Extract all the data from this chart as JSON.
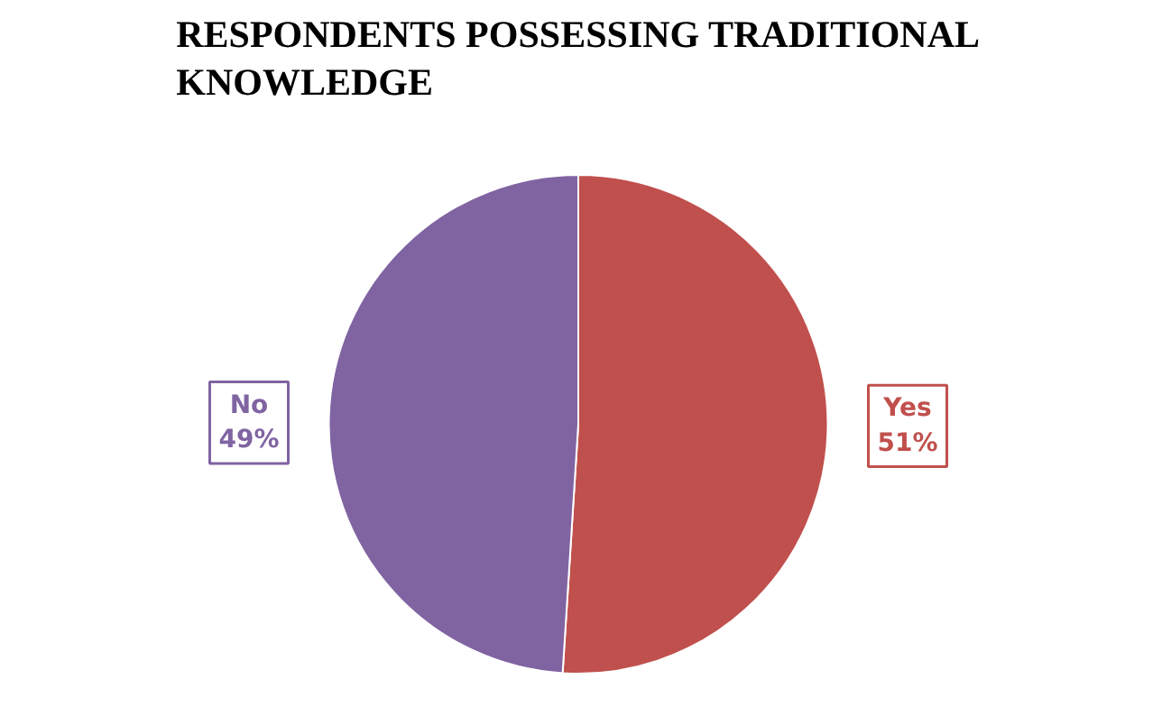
{
  "chart_data": {
    "type": "pie",
    "title": "RESPONDENTS POSSESSING TRADITIONAL KNOWLEDGE",
    "categories": [
      "Yes",
      "No"
    ],
    "values": [
      51,
      49
    ],
    "value_labels": [
      "51%",
      "49%"
    ],
    "colors": [
      "#c0504d",
      "#8064a2"
    ]
  }
}
